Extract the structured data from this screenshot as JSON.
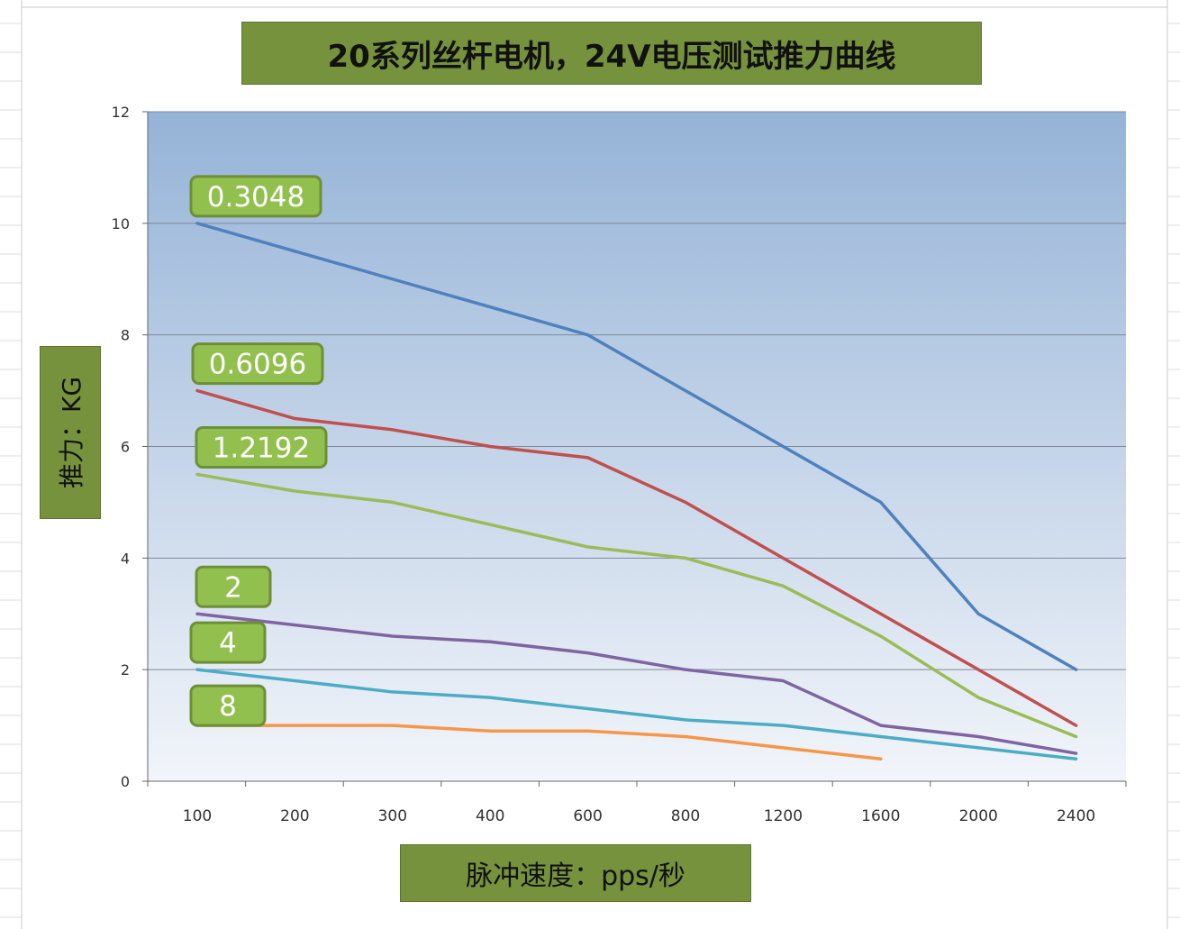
{
  "chart_data": {
    "type": "line",
    "title": "20系列丝杆电机，24V电压测试推力曲线",
    "xlabel": "脉冲速度：pps/秒",
    "ylabel": "推力：KG",
    "categories": [
      "100",
      "200",
      "300",
      "400",
      "600",
      "800",
      "1200",
      "1600",
      "2000",
      "2400"
    ],
    "ylim": [
      0,
      12
    ],
    "yticks": [
      "0",
      "2",
      "4",
      "6",
      "8",
      "10",
      "12"
    ],
    "grid": true,
    "series": [
      {
        "name": "0.3048",
        "color": "#4f81bd",
        "values": [
          10,
          9.5,
          9.0,
          8.5,
          8.0,
          7.0,
          6.0,
          5.0,
          3.0,
          2.0
        ]
      },
      {
        "name": "0.6096",
        "color": "#c0504d",
        "values": [
          7.0,
          6.5,
          6.3,
          6.0,
          5.8,
          5.0,
          4.0,
          3.0,
          2.0,
          1.0
        ]
      },
      {
        "name": "1.2192",
        "color": "#9bbb59",
        "values": [
          5.5,
          5.2,
          5.0,
          4.6,
          4.2,
          4.0,
          3.5,
          2.6,
          1.5,
          0.8
        ]
      },
      {
        "name": "2",
        "color": "#8064a2",
        "values": [
          3.0,
          2.8,
          2.6,
          2.5,
          2.3,
          2.0,
          1.8,
          1.0,
          0.8,
          0.5
        ]
      },
      {
        "name": "4",
        "color": "#4bacc6",
        "values": [
          2.0,
          1.8,
          1.6,
          1.5,
          1.3,
          1.1,
          1.0,
          0.8,
          0.6,
          0.4
        ]
      },
      {
        "name": "8",
        "color": "#f79646",
        "values": [
          1.0,
          1.0,
          1.0,
          0.9,
          0.9,
          0.8,
          0.6,
          0.4,
          null,
          null
        ]
      }
    ]
  },
  "style": {
    "plot_bg_top": "#95b3d7",
    "plot_bg_bottom": "#f2f5fa",
    "label_box_fill": "#92c04e",
    "label_box_border": "#6d8f36",
    "header_box_fill": "#76923c"
  }
}
